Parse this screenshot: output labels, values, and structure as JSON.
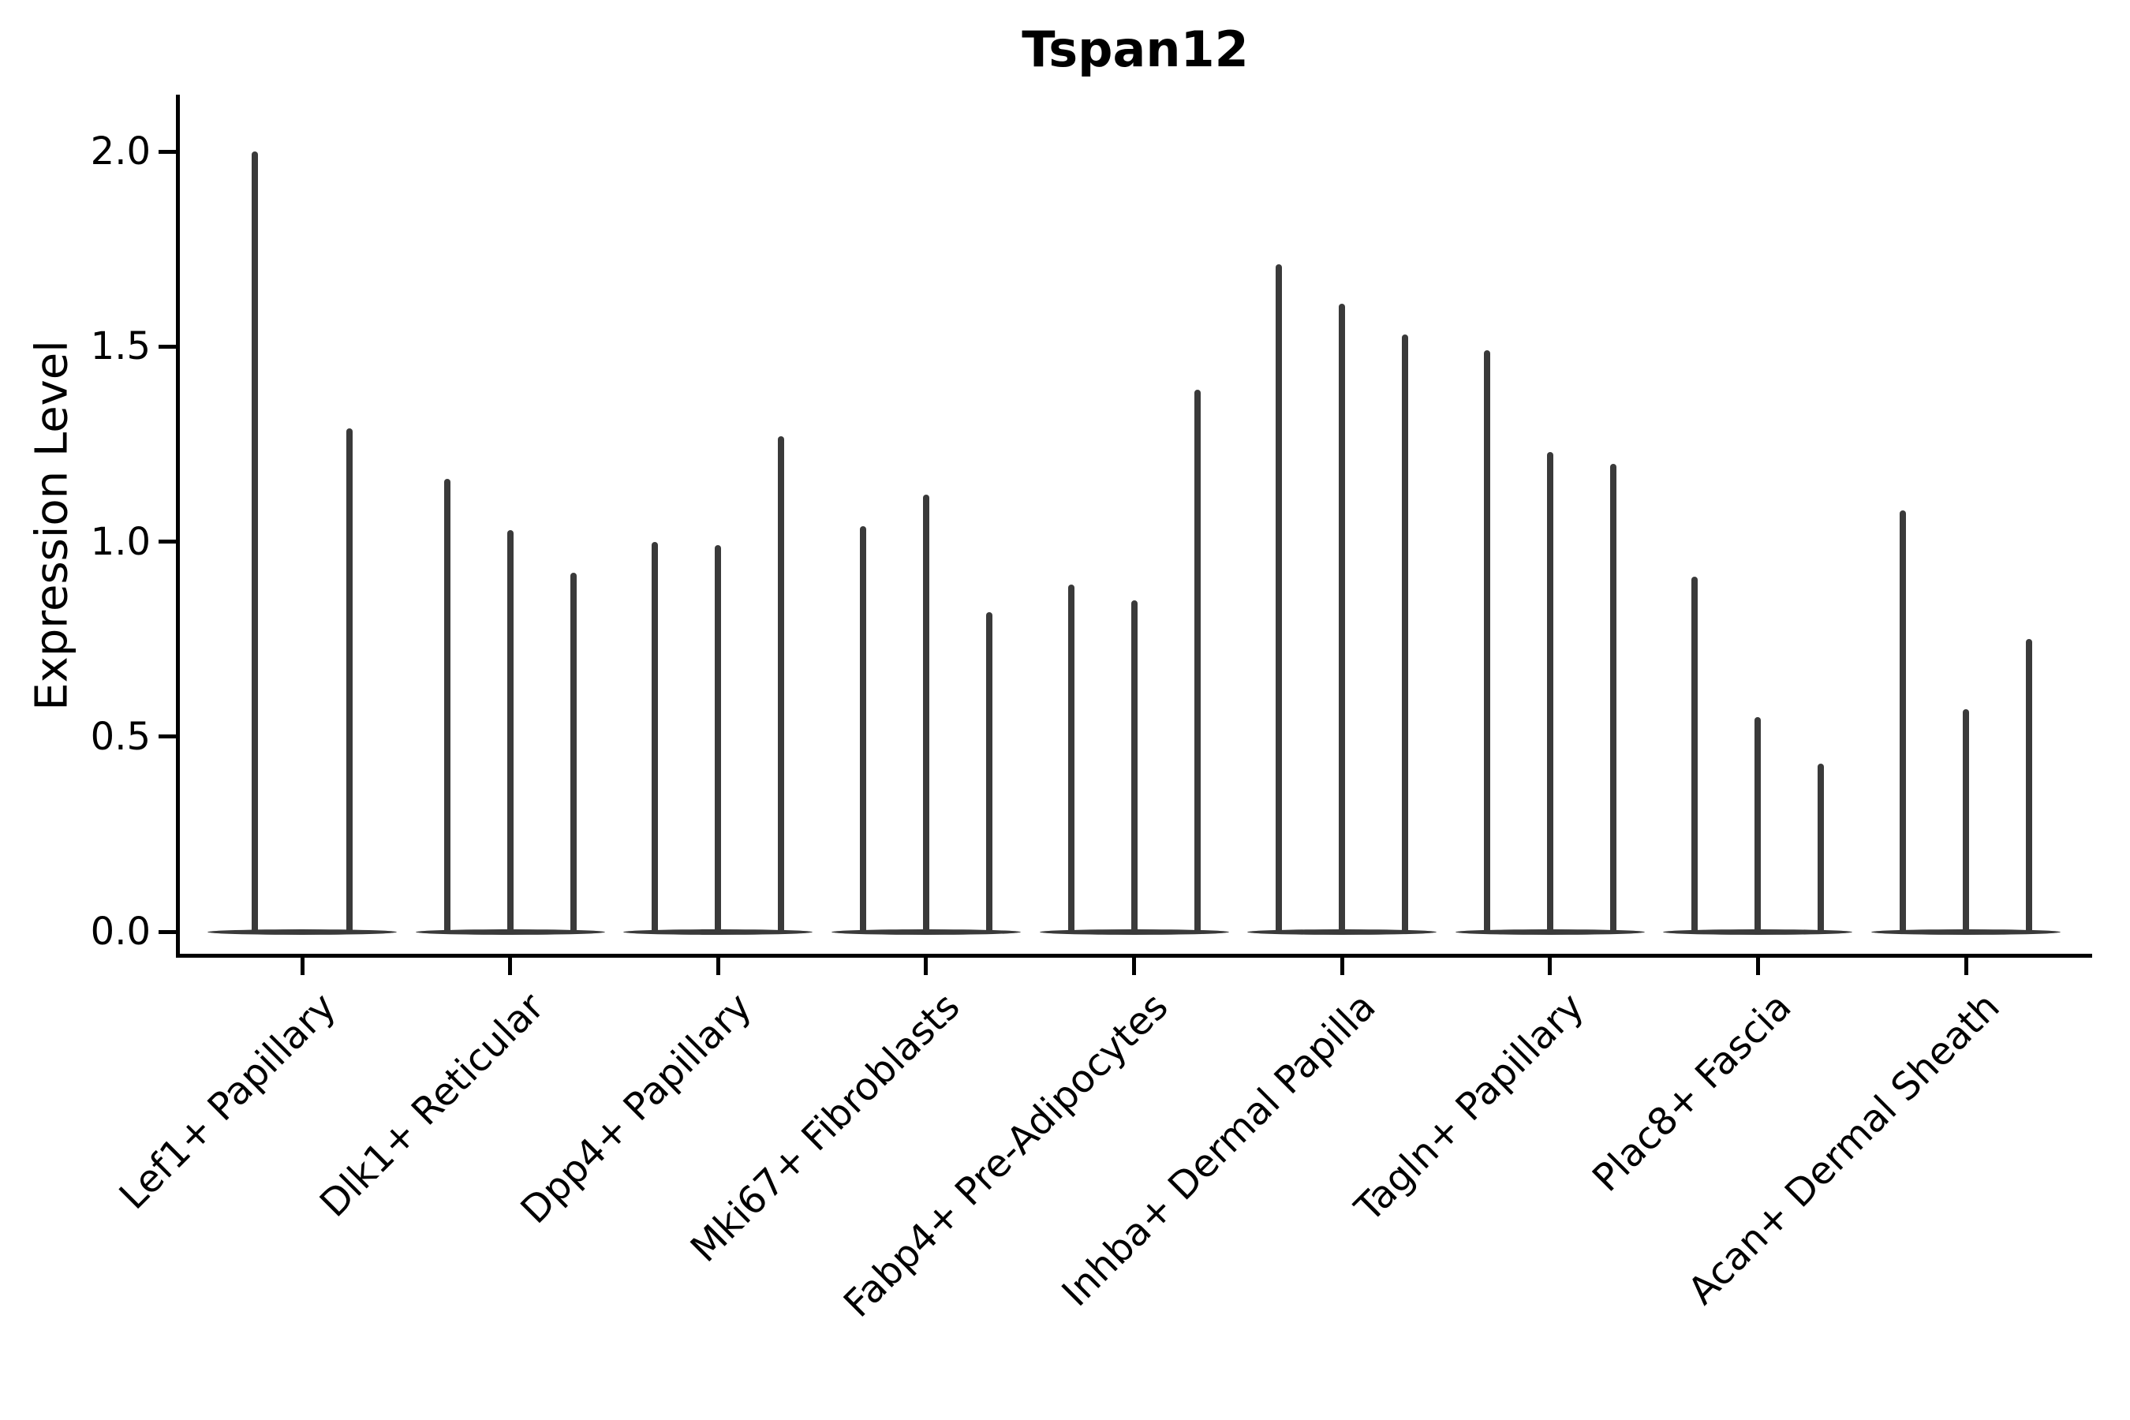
{
  "chart_data": {
    "type": "violin",
    "title": "Tspan12",
    "xlabel": "",
    "ylabel": "Expression Level",
    "ylim": [
      0,
      2.05
    ],
    "yticks": [
      "0.0",
      "0.5",
      "1.0",
      "1.5",
      "2.0"
    ],
    "ytick_values": [
      0.0,
      0.5,
      1.0,
      1.5,
      2.0
    ],
    "grid": false,
    "legend": "none",
    "violin_color": "#3a3a3a",
    "axis_color": "#000000",
    "note": "Sparse single-cell expression violins: each violin collapses to a wide flat base at 0 with a thin spike reaching its maximum expression value.",
    "groups": [
      {
        "category": "Lef1+ Papillary",
        "violin_max_values": [
          2.0,
          1.29
        ]
      },
      {
        "category": "Dlk1+ Reticular",
        "violin_max_values": [
          1.16,
          1.03,
          0.92
        ]
      },
      {
        "category": "Dpp4+ Papillary",
        "violin_max_values": [
          1.0,
          0.99,
          1.27
        ]
      },
      {
        "category": "Mki67+ Fibroblasts",
        "violin_max_values": [
          1.04,
          1.12,
          0.82
        ]
      },
      {
        "category": "Fabp4+ Pre-Adipocytes",
        "violin_max_values": [
          0.89,
          0.85,
          1.39
        ]
      },
      {
        "category": "Inhba+ Dermal Papilla",
        "violin_max_values": [
          1.71,
          1.61,
          1.53
        ]
      },
      {
        "category": "Tagln+ Papillary",
        "violin_max_values": [
          1.49,
          1.23,
          1.2
        ]
      },
      {
        "category": "Plac8+ Fascia",
        "violin_max_values": [
          0.91,
          0.55,
          0.43
        ]
      },
      {
        "category": "Acan+ Dermal Sheath",
        "violin_max_values": [
          1.08,
          0.57,
          0.75
        ]
      }
    ]
  }
}
